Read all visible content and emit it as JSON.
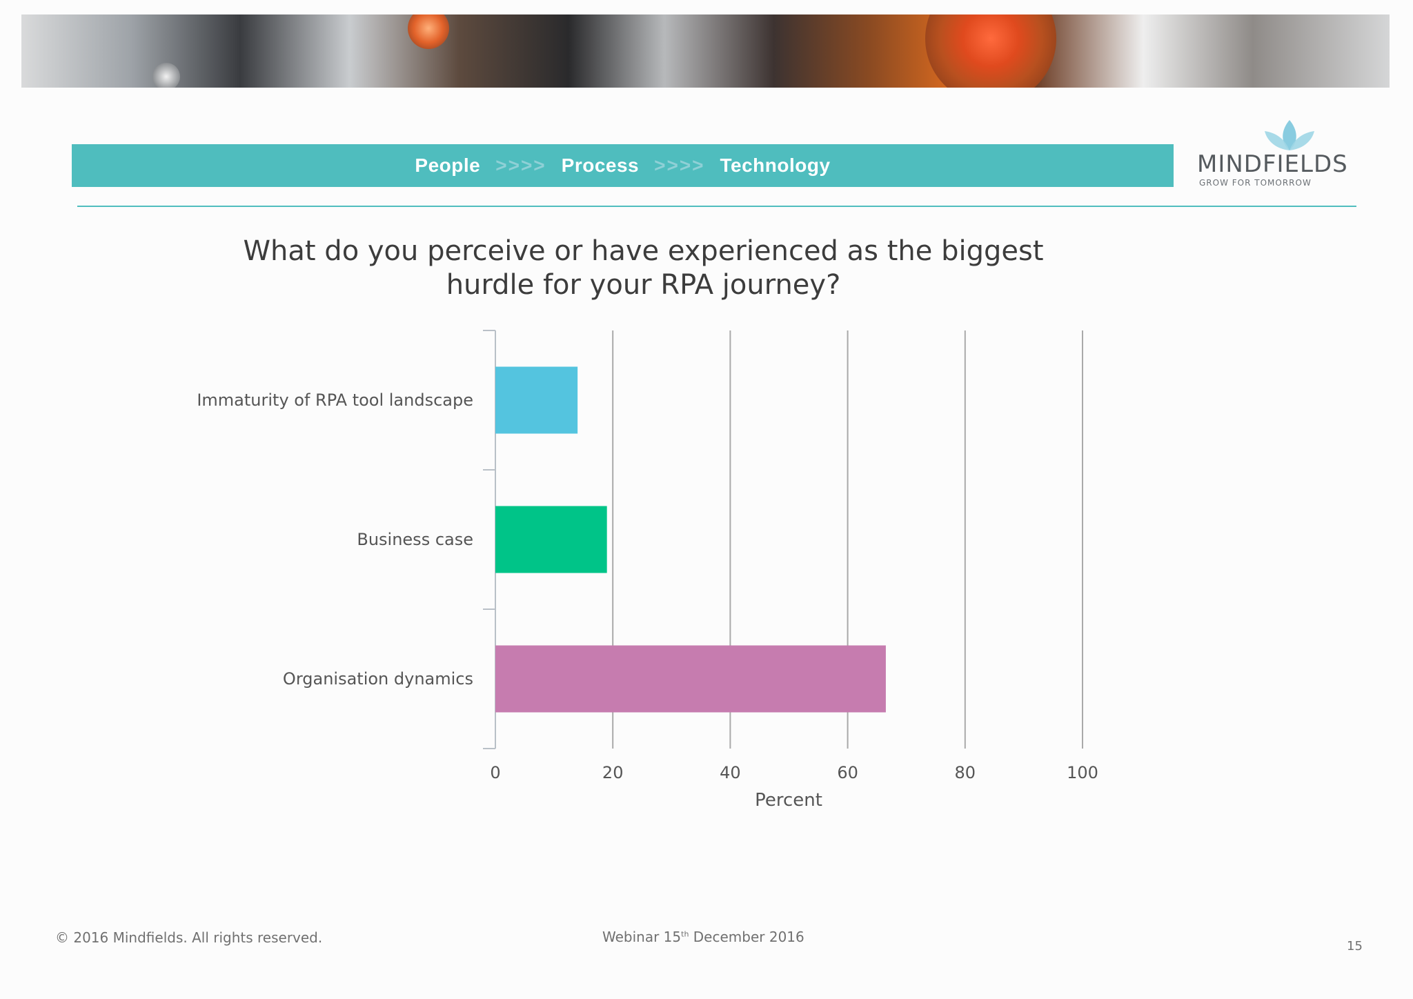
{
  "header": {
    "word1": "People",
    "arrows1": ">>>>",
    "word2": "Process",
    "arrows2": ">>>>",
    "word3": "Technology"
  },
  "logo": {
    "brand": "MINDFIELDS",
    "tagline": "GROW FOR TOMORROW",
    "icon": "lotus-icon"
  },
  "colors": {
    "accent": "#4fbdbe",
    "series": [
      "#54c4df",
      "#00c488",
      "#c67caf"
    ]
  },
  "chart_data": {
    "type": "bar",
    "orientation": "horizontal",
    "title": "What do you perceive or have experienced as the biggest hurdle for your RPA journey?",
    "title_line1": "What do you perceive or have experienced as the biggest",
    "title_line2": "hurdle for your RPA journey?",
    "categories": [
      "Immaturity of RPA tool landscape",
      "Business case",
      "Organisation dynamics"
    ],
    "values": [
      14,
      19,
      66.5
    ],
    "xlabel": "Percent",
    "ylabel": "",
    "xlim": [
      0,
      100
    ],
    "xticks": [
      "0",
      "20",
      "40",
      "60",
      "80",
      "100"
    ],
    "grid": true,
    "legend": "none"
  },
  "footer": {
    "copyright": "© 2016  Mindfields. All rights reserved.",
    "webinar_prefix": "Webinar 15",
    "webinar_sup": "th",
    "webinar_suffix": " December 2016",
    "page_number": "15"
  }
}
